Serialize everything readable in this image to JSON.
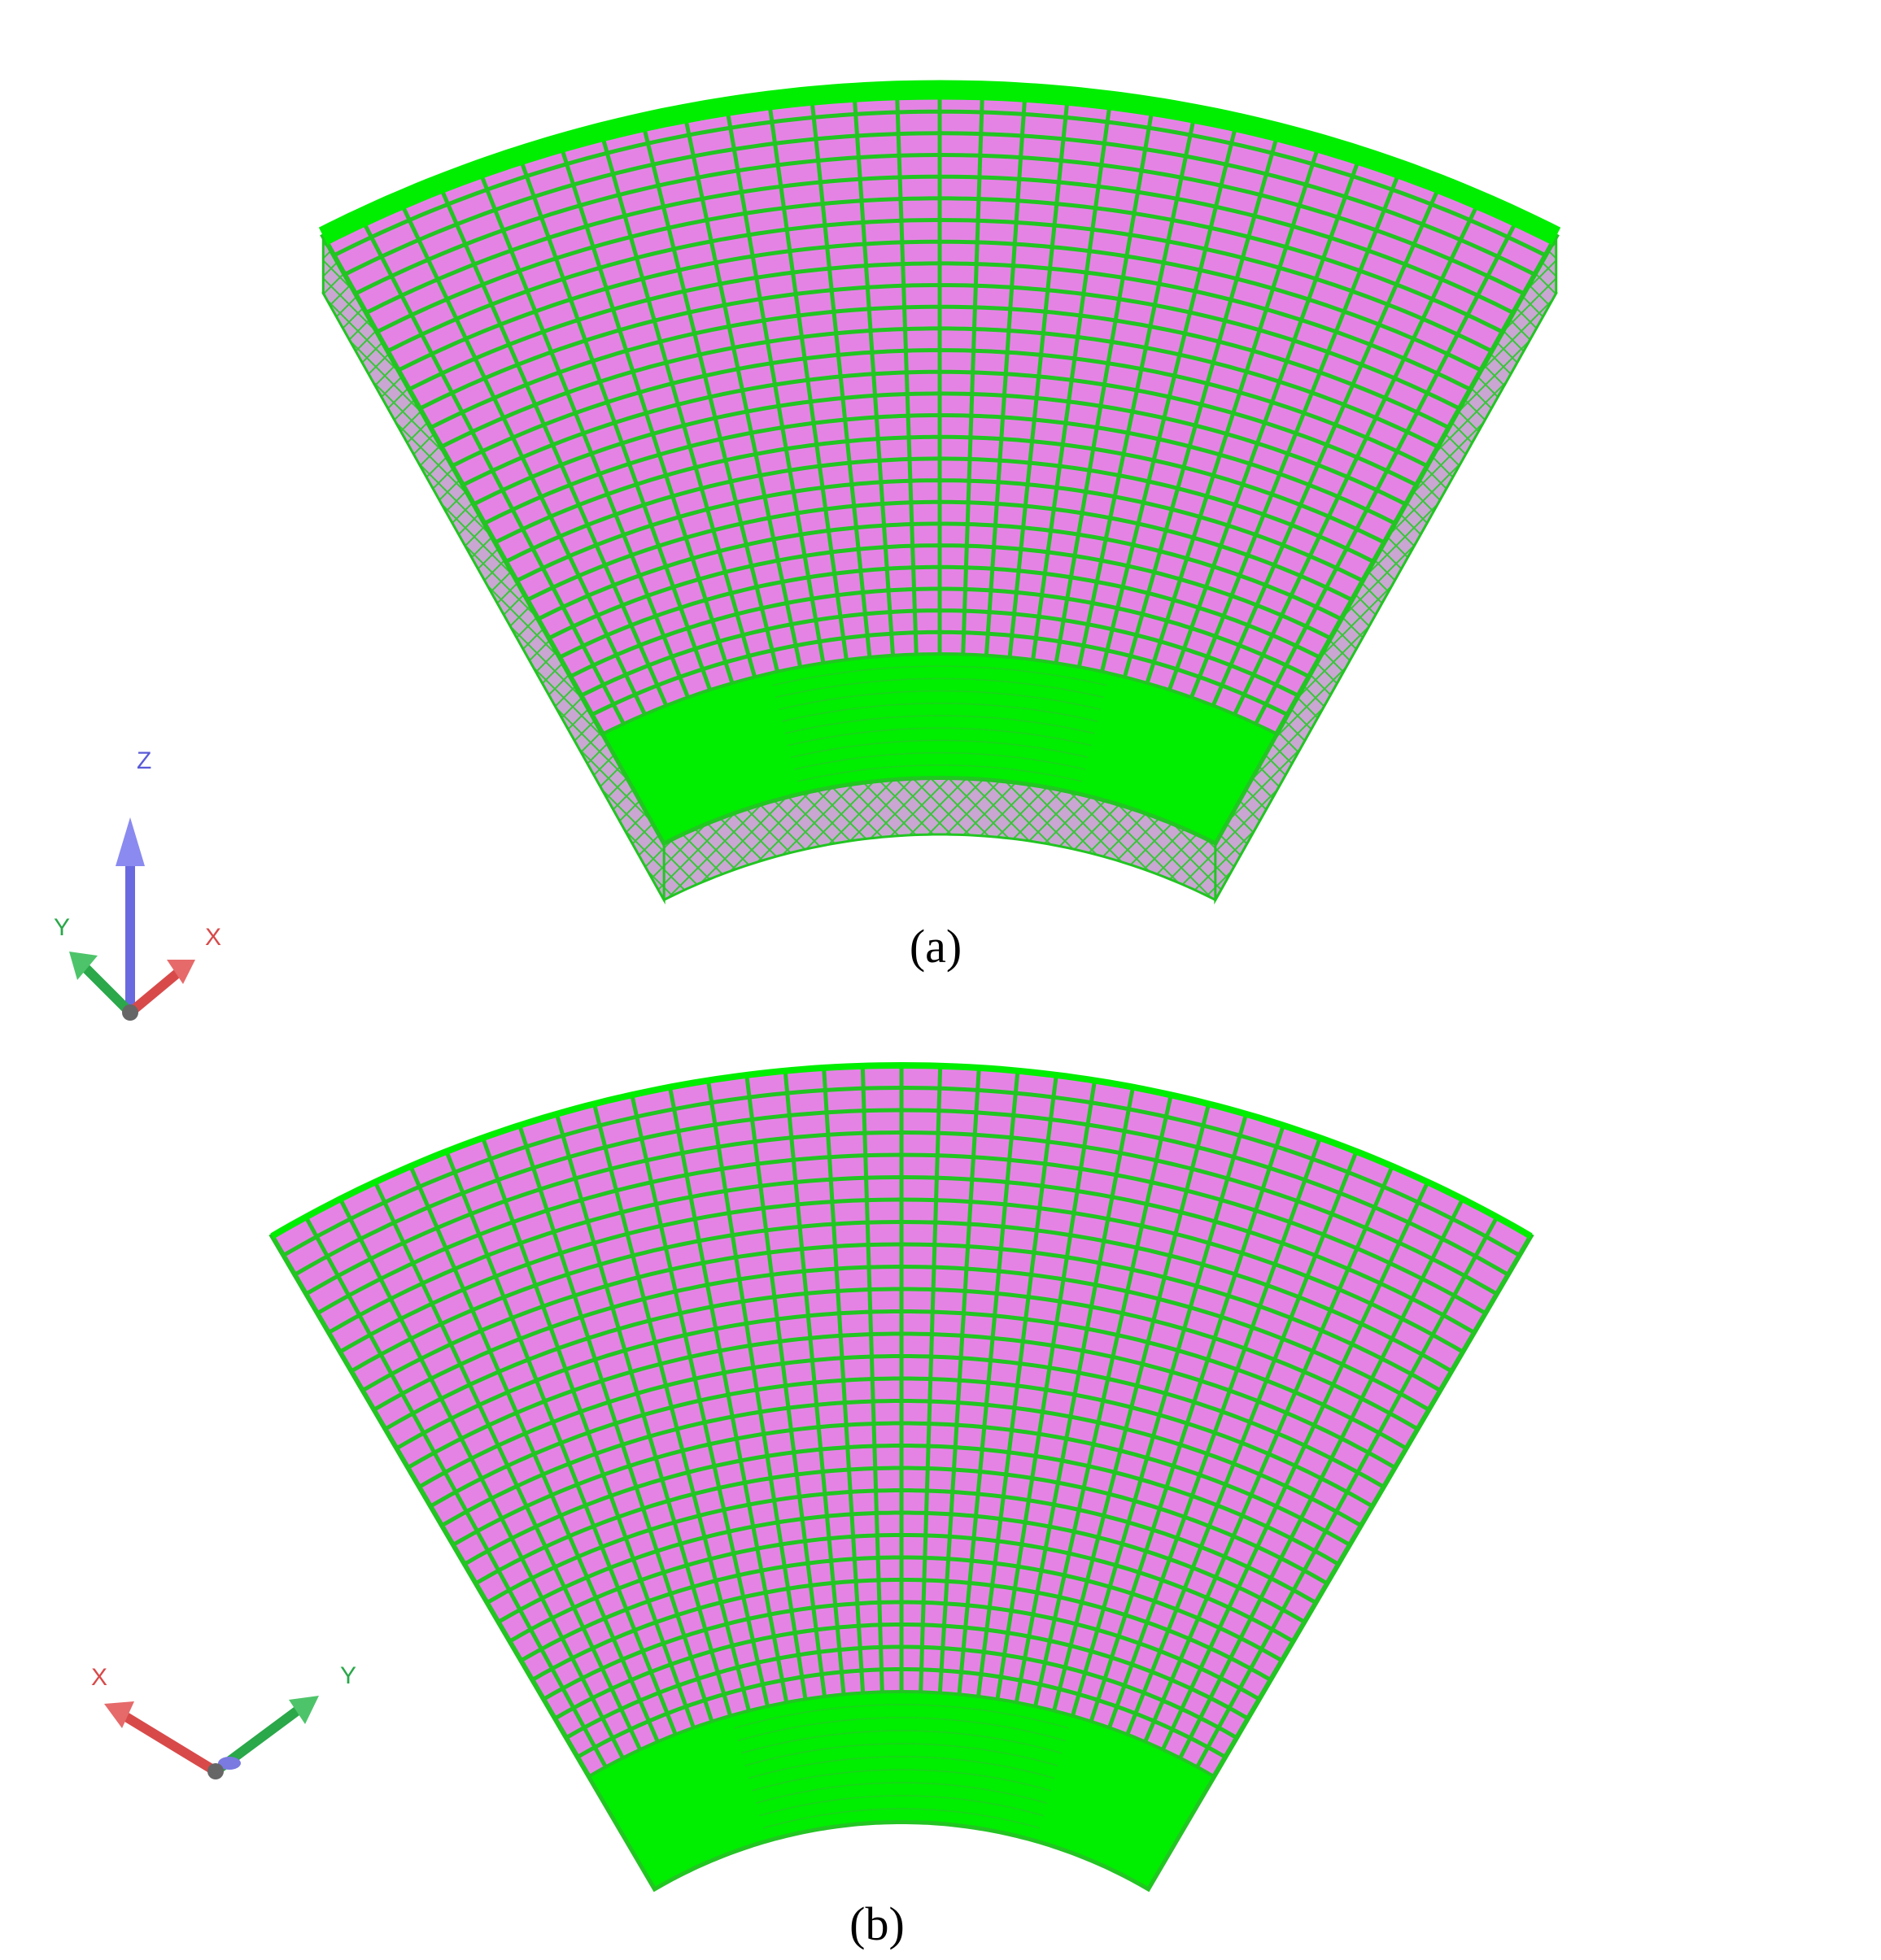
{
  "figure": {
    "panels": [
      {
        "id": "a",
        "caption": "(a)",
        "view": "isometric mesh of annular sector with thickness",
        "triad": {
          "axes": [
            {
              "label": "Z",
              "color": "#5a5ad8"
            },
            {
              "label": "Y",
              "color": "#2aa84a"
            },
            {
              "label": "X",
              "color": "#d84a4a"
            }
          ]
        }
      },
      {
        "id": "b",
        "caption": "(b)",
        "view": "top view mesh of annular sector",
        "triad": {
          "axes": [
            {
              "label": "X",
              "color": "#d84a4a"
            },
            {
              "label": "Y",
              "color": "#2aa84a"
            }
          ]
        }
      }
    ],
    "colors": {
      "mesh_line": "#22c522",
      "element_fill": "#e583e5",
      "dense_region": "#00ee00",
      "side_face": "#bfa3c8"
    }
  }
}
